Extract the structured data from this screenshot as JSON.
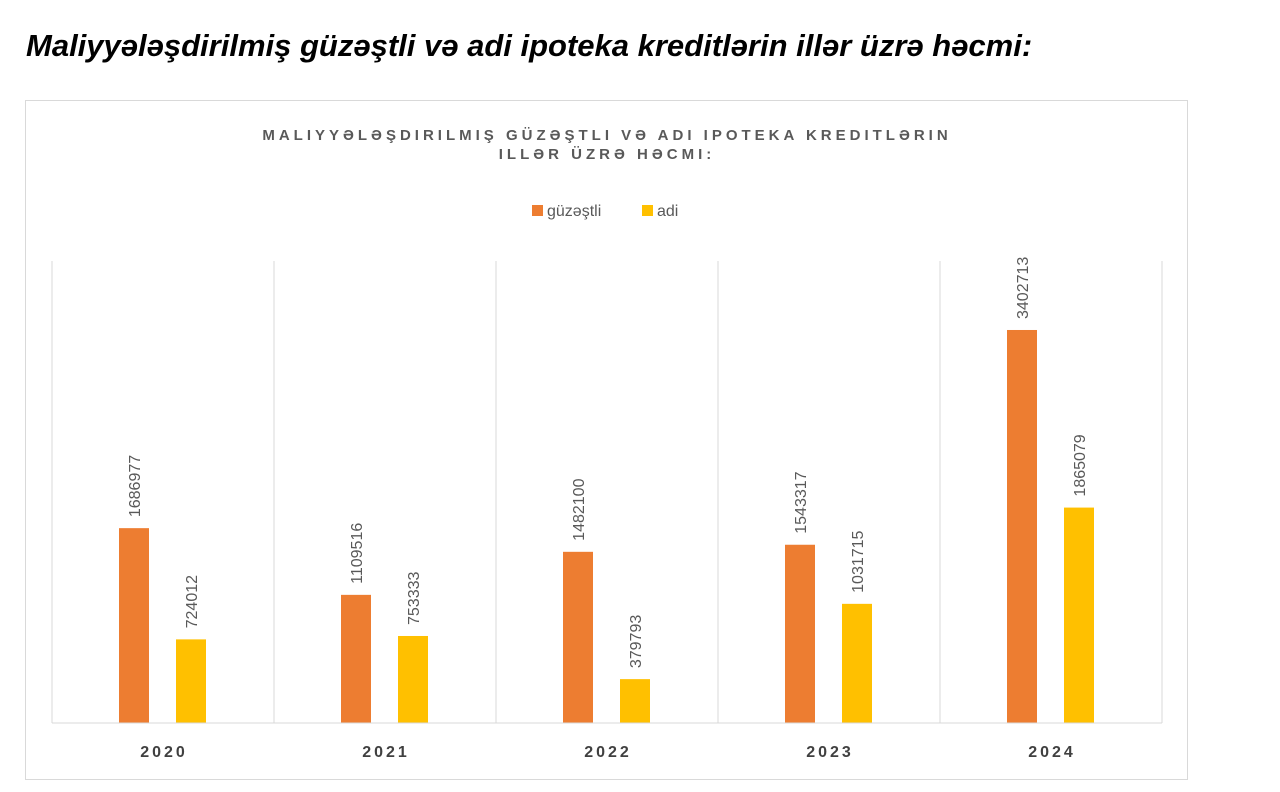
{
  "page": {
    "heading": "Maliyyələşdirilmiş güzəştli və adi ipoteka kreditlərin illər üzrə həcmi:"
  },
  "chart_data": {
    "type": "bar",
    "title_lines": [
      "MALIYYƏLƏŞDIRILMIŞ GÜZƏŞTLI VƏ ADI IPOTEKA KREDITLƏRIN",
      "ILLƏR ÜZRƏ HƏCMI:"
    ],
    "categories": [
      "2020",
      "2021",
      "2022",
      "2023",
      "2024"
    ],
    "series": [
      {
        "name": "güzəştli",
        "color": "#ed7d31",
        "values": [
          1686977,
          1109516,
          1482100,
          1543317,
          3402713
        ]
      },
      {
        "name": "adi",
        "color": "#ffc000",
        "values": [
          724012,
          753333,
          379793,
          1031715,
          1865079
        ]
      }
    ],
    "ylim": [
      0,
      4000000
    ],
    "y_axis_visible": false,
    "gridlines": "vertical category separators",
    "legend_position": "top-center",
    "data_labels": "rotated vertical, above bars"
  }
}
